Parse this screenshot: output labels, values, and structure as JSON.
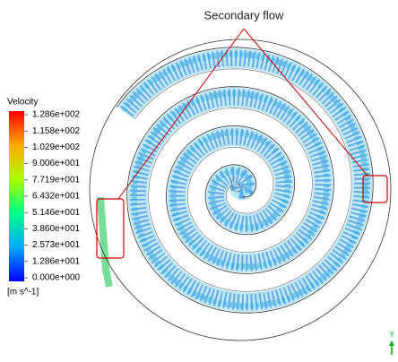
{
  "annotation": "Secondary flow",
  "legend": {
    "title": "Velocity",
    "ticks": [
      "1.286e+002",
      "1.158e+002",
      "1.029e+002",
      "9.006e+001",
      "7.719e+001",
      "6.432e+001",
      "5.146e+001",
      "3.860e+001",
      "2.573e+001",
      "1.286e+001",
      "0.000e+000"
    ],
    "unit": "[m s^-1]"
  },
  "axis_label": "Y"
}
